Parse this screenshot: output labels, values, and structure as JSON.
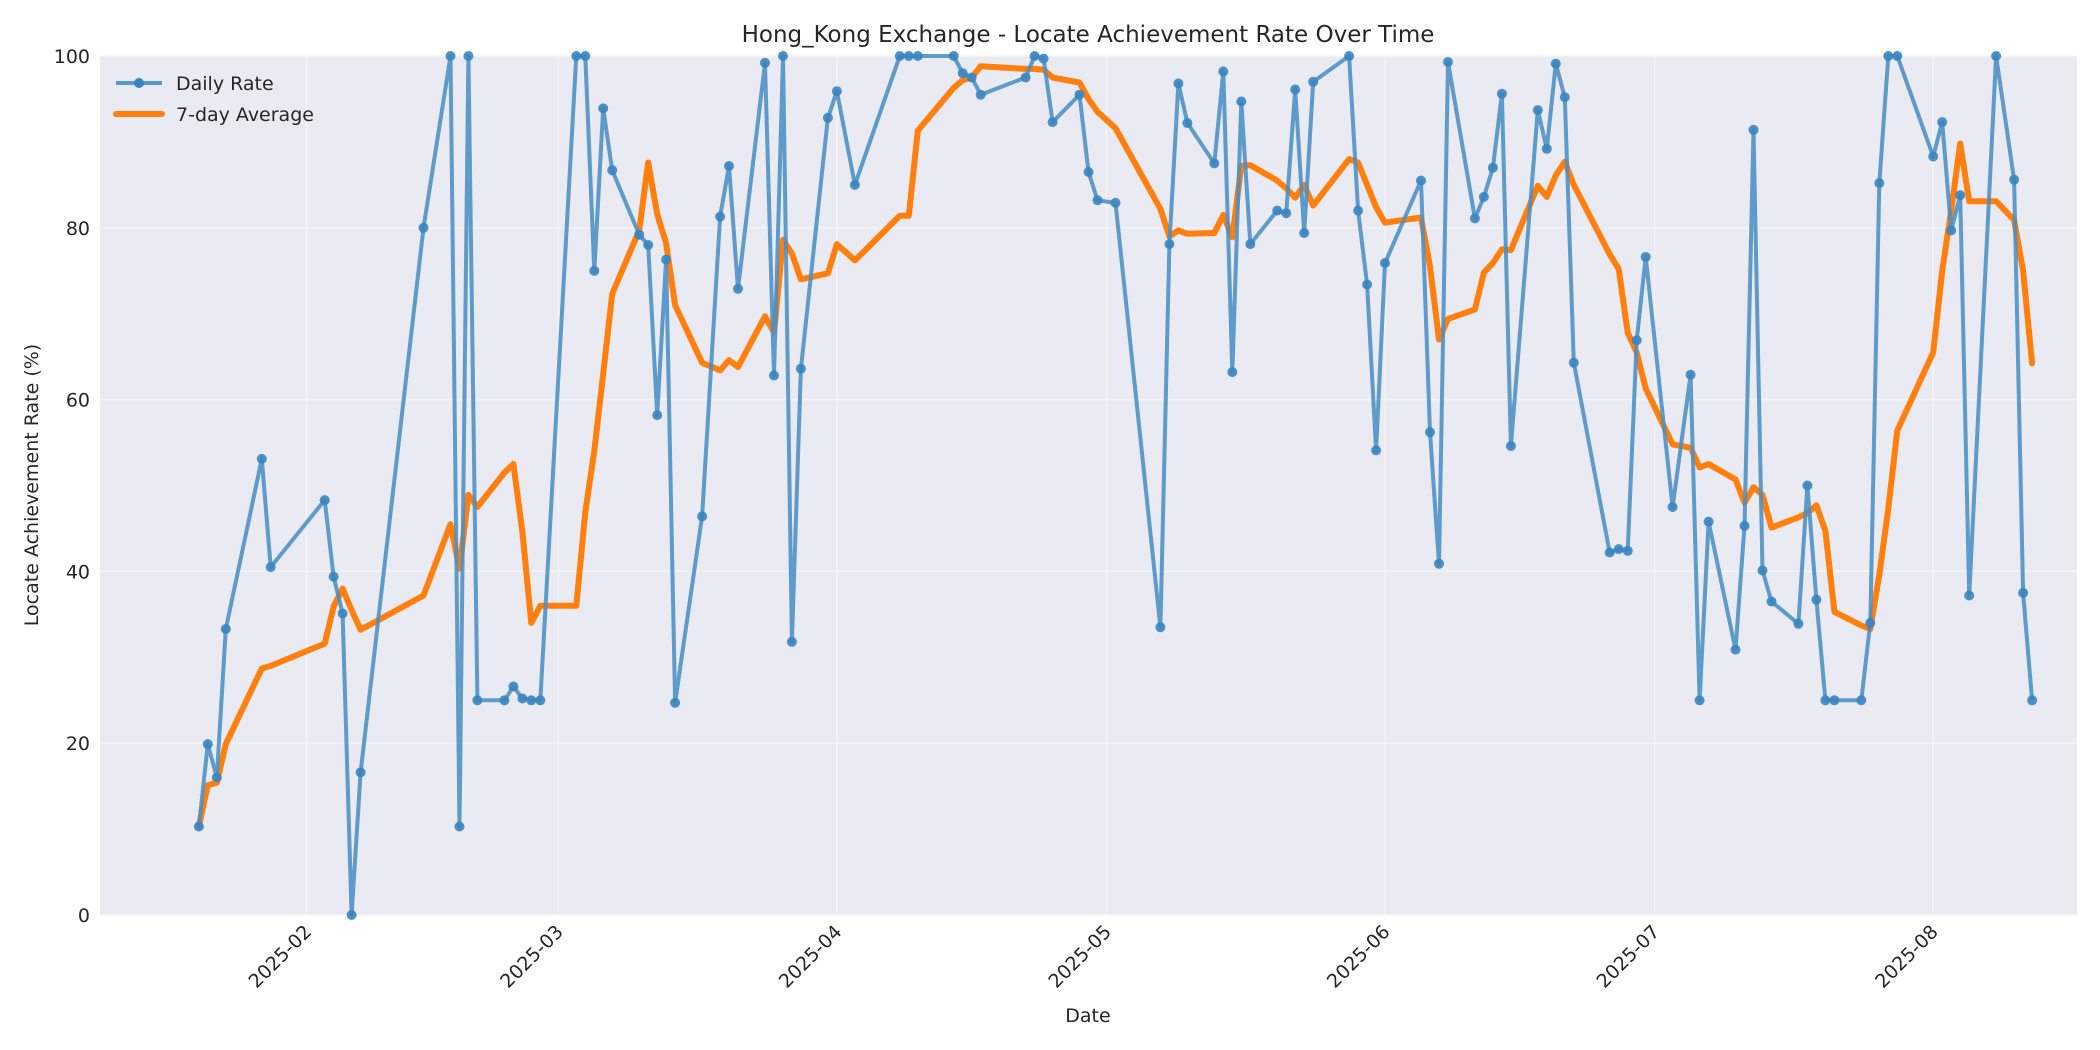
{
  "chart_data": {
    "type": "line",
    "title": "Hong_Kong Exchange - Locate Achievement Rate Over Time",
    "xlabel": "Date",
    "ylabel": "Locate Achievement Rate (%)",
    "ylim": [
      0,
      100
    ],
    "yticks": [
      "0",
      "20",
      "40",
      "60",
      "80",
      "100"
    ],
    "xticks": [
      "2025-02",
      "2025-03",
      "2025-04",
      "2025-05",
      "2025-06",
      "2025-07",
      "2025-08"
    ],
    "grid": true,
    "legend_position": "upper left",
    "colors": {
      "daily": "#4a90c4",
      "avg": "#ff7f0e",
      "plot_bg": "#eaeaf2",
      "grid": "#ffffff"
    },
    "series": [
      {
        "name": "Daily Rate",
        "marker": "circle",
        "points": [
          [
            "2025-01-20",
            10.3
          ],
          [
            "2025-01-21",
            19.9
          ],
          [
            "2025-01-22",
            16.0
          ],
          [
            "2025-01-23",
            33.3
          ],
          [
            "2025-01-27",
            53.1
          ],
          [
            "2025-01-28",
            40.5
          ],
          [
            "2025-02-03",
            48.3
          ],
          [
            "2025-02-04",
            39.4
          ],
          [
            "2025-02-05",
            35.1
          ],
          [
            "2025-02-06",
            0.0
          ],
          [
            "2025-02-07",
            16.6
          ],
          [
            "2025-02-14",
            80.0
          ],
          [
            "2025-02-17",
            100
          ],
          [
            "2025-02-18",
            10.3
          ],
          [
            "2025-02-19",
            100
          ],
          [
            "2025-02-20",
            25.0
          ],
          [
            "2025-02-23",
            25.0
          ],
          [
            "2025-02-24",
            26.6
          ],
          [
            "2025-02-25",
            25.2
          ],
          [
            "2025-02-26",
            25.0
          ],
          [
            "2025-02-27",
            25.0
          ],
          [
            "2025-03-03",
            100
          ],
          [
            "2025-03-04",
            100
          ],
          [
            "2025-03-05",
            75.0
          ],
          [
            "2025-03-06",
            93.9
          ],
          [
            "2025-03-07",
            86.7
          ],
          [
            "2025-03-10",
            79.2
          ],
          [
            "2025-03-11",
            78.0
          ],
          [
            "2025-03-12",
            58.2
          ],
          [
            "2025-03-13",
            76.3
          ],
          [
            "2025-03-14",
            24.7
          ],
          [
            "2025-03-17",
            46.4
          ],
          [
            "2025-03-19",
            81.3
          ],
          [
            "2025-03-20",
            87.2
          ],
          [
            "2025-03-21",
            72.9
          ],
          [
            "2025-03-24",
            99.2
          ],
          [
            "2025-03-25",
            62.8
          ],
          [
            "2025-03-26",
            100
          ],
          [
            "2025-03-27",
            31.8
          ],
          [
            "2025-03-28",
            63.6
          ],
          [
            "2025-03-31",
            92.8
          ],
          [
            "2025-04-01",
            95.9
          ],
          [
            "2025-04-03",
            85.0
          ],
          [
            "2025-04-08",
            100
          ],
          [
            "2025-04-09",
            100
          ],
          [
            "2025-04-10",
            100
          ],
          [
            "2025-04-14",
            100
          ],
          [
            "2025-04-15",
            98.0
          ],
          [
            "2025-04-16",
            97.5
          ],
          [
            "2025-04-17",
            95.5
          ],
          [
            "2025-04-22",
            97.5
          ],
          [
            "2025-04-23",
            100
          ],
          [
            "2025-04-24",
            99.7
          ],
          [
            "2025-04-25",
            92.3
          ],
          [
            "2025-04-28",
            95.5
          ],
          [
            "2025-04-29",
            86.5
          ],
          [
            "2025-04-30",
            83.2
          ],
          [
            "2025-05-02",
            82.9
          ],
          [
            "2025-05-07",
            33.5
          ],
          [
            "2025-05-08",
            78.1
          ],
          [
            "2025-05-09",
            96.8
          ],
          [
            "2025-05-10",
            92.2
          ],
          [
            "2025-05-13",
            87.5
          ],
          [
            "2025-05-14",
            98.2
          ],
          [
            "2025-05-15",
            63.2
          ],
          [
            "2025-05-16",
            94.7
          ],
          [
            "2025-05-17",
            78.1
          ],
          [
            "2025-05-20",
            82.0
          ],
          [
            "2025-05-21",
            81.7
          ],
          [
            "2025-05-22",
            96.1
          ],
          [
            "2025-05-23",
            79.4
          ],
          [
            "2025-05-24",
            97.0
          ],
          [
            "2025-05-28",
            100
          ],
          [
            "2025-05-29",
            82.0
          ],
          [
            "2025-05-30",
            73.4
          ],
          [
            "2025-05-31",
            54.1
          ],
          [
            "2025-06-01",
            75.9
          ],
          [
            "2025-06-05",
            85.5
          ],
          [
            "2025-06-06",
            56.2
          ],
          [
            "2025-06-07",
            40.9
          ],
          [
            "2025-06-08",
            99.3
          ],
          [
            "2025-06-11",
            81.1
          ],
          [
            "2025-06-12",
            83.6
          ],
          [
            "2025-06-13",
            87.0
          ],
          [
            "2025-06-14",
            95.6
          ],
          [
            "2025-06-15",
            54.6
          ],
          [
            "2025-06-18",
            93.7
          ],
          [
            "2025-06-19",
            89.2
          ],
          [
            "2025-06-20",
            99.1
          ],
          [
            "2025-06-21",
            95.2
          ],
          [
            "2025-06-22",
            64.3
          ],
          [
            "2025-06-26",
            42.2
          ],
          [
            "2025-06-27",
            42.6
          ],
          [
            "2025-06-28",
            42.4
          ],
          [
            "2025-06-29",
            66.9
          ],
          [
            "2025-06-30",
            76.6
          ],
          [
            "2025-07-03",
            47.5
          ],
          [
            "2025-07-05",
            62.9
          ],
          [
            "2025-07-06",
            25.0
          ],
          [
            "2025-07-07",
            45.8
          ],
          [
            "2025-07-10",
            30.9
          ],
          [
            "2025-07-11",
            45.3
          ],
          [
            "2025-07-12",
            91.4
          ],
          [
            "2025-07-13",
            40.1
          ],
          [
            "2025-07-14",
            36.5
          ],
          [
            "2025-07-17",
            33.9
          ],
          [
            "2025-07-18",
            50.0
          ],
          [
            "2025-07-19",
            36.7
          ],
          [
            "2025-07-20",
            25.0
          ],
          [
            "2025-07-21",
            25.0
          ],
          [
            "2025-07-24",
            25.0
          ],
          [
            "2025-07-25",
            34.0
          ],
          [
            "2025-07-26",
            85.2
          ],
          [
            "2025-07-27",
            100
          ],
          [
            "2025-07-28",
            100
          ],
          [
            "2025-08-01",
            88.3
          ],
          [
            "2025-08-02",
            92.3
          ],
          [
            "2025-08-03",
            79.7
          ],
          [
            "2025-08-04",
            83.8
          ],
          [
            "2025-08-05",
            37.2
          ],
          [
            "2025-08-08",
            100
          ],
          [
            "2025-08-10",
            85.6
          ],
          [
            "2025-08-11",
            37.5
          ],
          [
            "2025-08-12",
            25.0
          ]
        ]
      },
      {
        "name": "7-day Average",
        "marker": "none",
        "points": [
          [
            "2025-01-20",
            10.3
          ],
          [
            "2025-01-21",
            15.1
          ],
          [
            "2025-01-22",
            15.4
          ],
          [
            "2025-01-23",
            19.9
          ],
          [
            "2025-01-27",
            28.7
          ],
          [
            "2025-01-28",
            29.0
          ],
          [
            "2025-02-03",
            31.6
          ],
          [
            "2025-02-04",
            35.9
          ],
          [
            "2025-02-05",
            38.0
          ],
          [
            "2025-02-06",
            35.5
          ],
          [
            "2025-02-07",
            33.2
          ],
          [
            "2025-02-14",
            37.2
          ],
          [
            "2025-02-17",
            45.5
          ],
          [
            "2025-02-18",
            40.3
          ],
          [
            "2025-02-19",
            48.9
          ],
          [
            "2025-02-20",
            47.5
          ],
          [
            "2025-02-23",
            51.5
          ],
          [
            "2025-02-24",
            52.5
          ],
          [
            "2025-02-25",
            44.6
          ],
          [
            "2025-02-26",
            34.0
          ],
          [
            "2025-02-27",
            36.0
          ],
          [
            "2025-03-03",
            36.0
          ],
          [
            "2025-03-04",
            46.9
          ],
          [
            "2025-03-05",
            54.0
          ],
          [
            "2025-03-06",
            63.0
          ],
          [
            "2025-03-07",
            72.3
          ],
          [
            "2025-03-10",
            79.7
          ],
          [
            "2025-03-11",
            87.6
          ],
          [
            "2025-03-12",
            81.6
          ],
          [
            "2025-03-13",
            78.2
          ],
          [
            "2025-03-14",
            71.0
          ],
          [
            "2025-03-17",
            64.3
          ],
          [
            "2025-03-19",
            63.4
          ],
          [
            "2025-03-20",
            64.6
          ],
          [
            "2025-03-21",
            63.8
          ],
          [
            "2025-03-24",
            69.7
          ],
          [
            "2025-03-25",
            67.8
          ],
          [
            "2025-03-26",
            78.6
          ],
          [
            "2025-03-27",
            77.0
          ],
          [
            "2025-03-28",
            74.0
          ],
          [
            "2025-03-31",
            74.7
          ],
          [
            "2025-04-01",
            78.1
          ],
          [
            "2025-04-03",
            76.2
          ],
          [
            "2025-04-08",
            81.4
          ],
          [
            "2025-04-09",
            81.4
          ],
          [
            "2025-04-10",
            91.3
          ],
          [
            "2025-04-14",
            96.3
          ],
          [
            "2025-04-15",
            97.2
          ],
          [
            "2025-04-16",
            97.5
          ],
          [
            "2025-04-17",
            98.8
          ],
          [
            "2025-04-22",
            98.5
          ],
          [
            "2025-04-23",
            98.5
          ],
          [
            "2025-04-24",
            98.4
          ],
          [
            "2025-04-25",
            97.5
          ],
          [
            "2025-04-28",
            96.9
          ],
          [
            "2025-04-29",
            95.0
          ],
          [
            "2025-04-30",
            93.5
          ],
          [
            "2025-05-02",
            91.6
          ],
          [
            "2025-05-07",
            82.2
          ],
          [
            "2025-05-08",
            79.0
          ],
          [
            "2025-05-09",
            79.7
          ],
          [
            "2025-05-10",
            79.3
          ],
          [
            "2025-05-13",
            79.4
          ],
          [
            "2025-05-14",
            81.5
          ],
          [
            "2025-05-15",
            78.9
          ],
          [
            "2025-05-16",
            87.2
          ],
          [
            "2025-05-17",
            87.3
          ],
          [
            "2025-05-20",
            85.5
          ],
          [
            "2025-05-21",
            84.6
          ],
          [
            "2025-05-22",
            83.5
          ],
          [
            "2025-05-23",
            85.0
          ],
          [
            "2025-05-24",
            82.6
          ],
          [
            "2025-05-28",
            88.0
          ],
          [
            "2025-05-29",
            87.6
          ],
          [
            "2025-05-30",
            85.0
          ],
          [
            "2025-05-31",
            82.4
          ],
          [
            "2025-06-01",
            80.6
          ],
          [
            "2025-06-05",
            81.2
          ],
          [
            "2025-06-06",
            75.5
          ],
          [
            "2025-06-07",
            67.0
          ],
          [
            "2025-06-08",
            69.4
          ],
          [
            "2025-06-11",
            70.5
          ],
          [
            "2025-06-12",
            74.8
          ],
          [
            "2025-06-13",
            75.9
          ],
          [
            "2025-06-14",
            77.5
          ],
          [
            "2025-06-15",
            77.4
          ],
          [
            "2025-06-18",
            84.9
          ],
          [
            "2025-06-19",
            83.6
          ],
          [
            "2025-06-20",
            86.1
          ],
          [
            "2025-06-21",
            87.7
          ],
          [
            "2025-06-22",
            85.0
          ],
          [
            "2025-06-26",
            76.9
          ],
          [
            "2025-06-27",
            75.2
          ],
          [
            "2025-06-28",
            67.8
          ],
          [
            "2025-06-29",
            65.5
          ],
          [
            "2025-06-30",
            61.3
          ],
          [
            "2025-07-03",
            54.8
          ],
          [
            "2025-07-05",
            54.4
          ],
          [
            "2025-07-06",
            52.1
          ],
          [
            "2025-07-07",
            52.5
          ],
          [
            "2025-07-10",
            50.7
          ],
          [
            "2025-07-11",
            48.0
          ],
          [
            "2025-07-12",
            49.8
          ],
          [
            "2025-07-13",
            48.9
          ],
          [
            "2025-07-14",
            45.1
          ],
          [
            "2025-07-17",
            46.3
          ],
          [
            "2025-07-18",
            46.8
          ],
          [
            "2025-07-19",
            47.7
          ],
          [
            "2025-07-20",
            44.7
          ],
          [
            "2025-07-21",
            35.3
          ],
          [
            "2025-07-24",
            33.7
          ],
          [
            "2025-07-25",
            33.3
          ],
          [
            "2025-07-26",
            39.6
          ],
          [
            "2025-07-27",
            47.3
          ],
          [
            "2025-07-28",
            56.4
          ],
          [
            "2025-08-01",
            65.5
          ],
          [
            "2025-08-02",
            75.0
          ],
          [
            "2025-08-03",
            82.0
          ],
          [
            "2025-08-04",
            89.8
          ],
          [
            "2025-08-05",
            83.1
          ],
          [
            "2025-08-08",
            83.1
          ],
          [
            "2025-08-10",
            80.9
          ],
          [
            "2025-08-11",
            75.0
          ],
          [
            "2025-08-12",
            64.2
          ]
        ]
      }
    ]
  }
}
